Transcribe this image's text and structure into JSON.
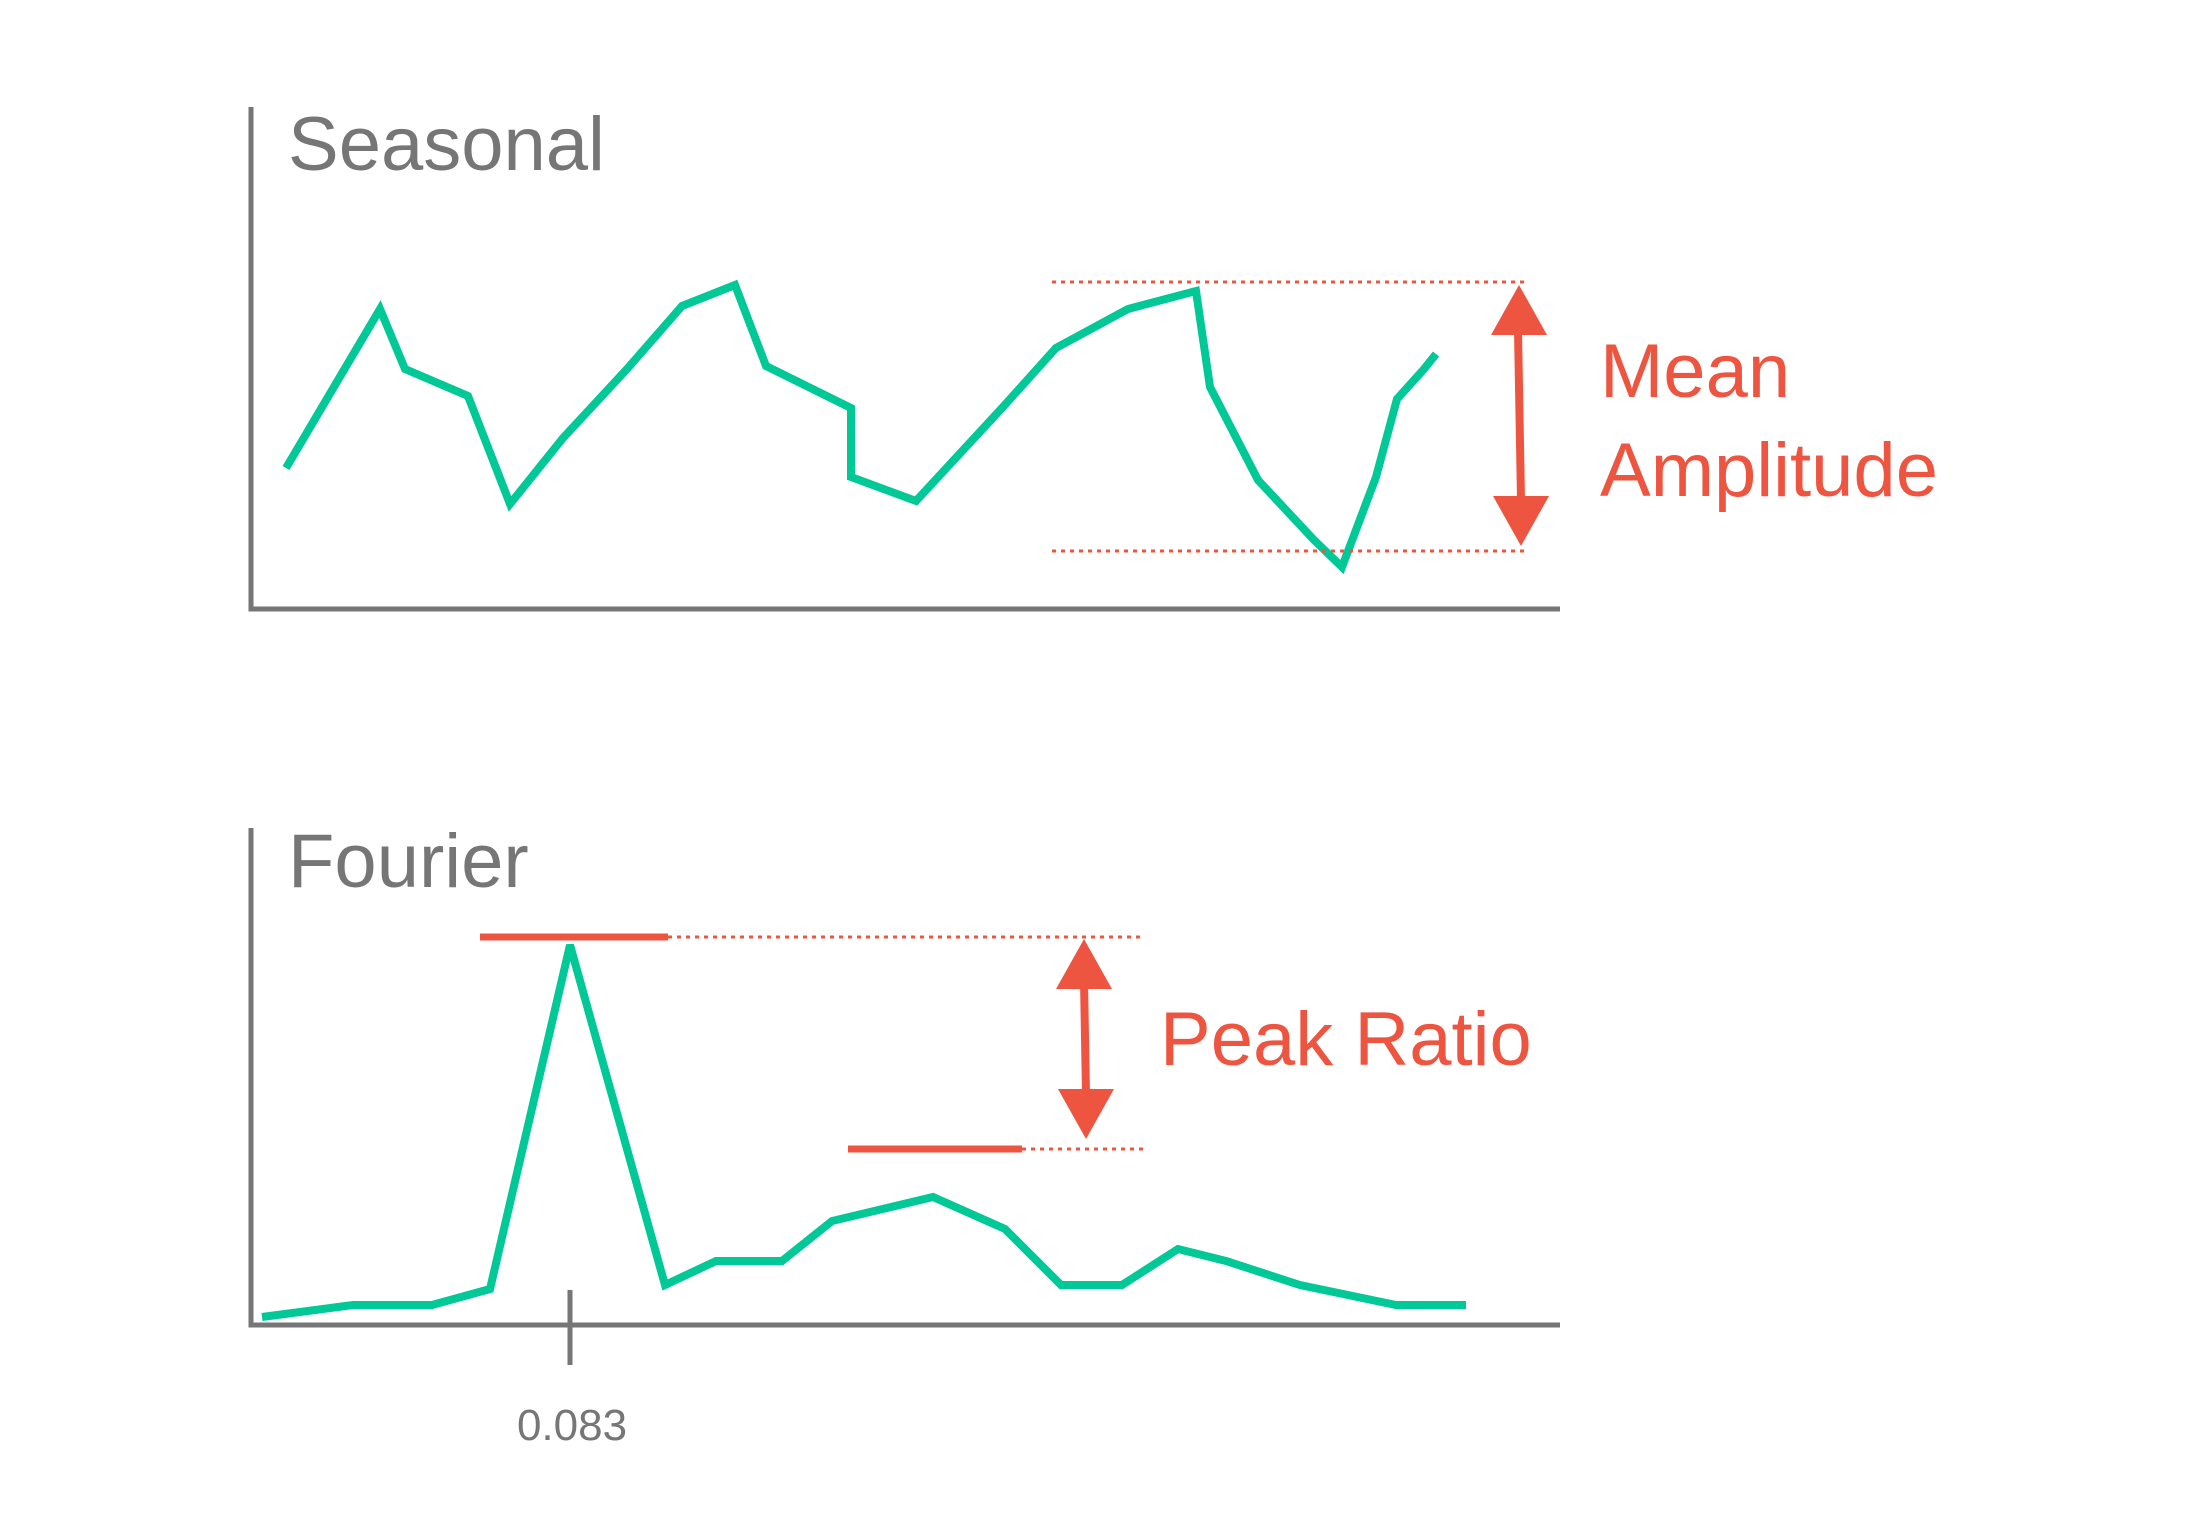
{
  "colors": {
    "axis": "#767676",
    "curve": "#00c896",
    "annotation": "#ee5540"
  },
  "seasonal": {
    "title": "Seasonal",
    "annotation_line1": "Mean",
    "annotation_line2": "Amplitude"
  },
  "fourier": {
    "title": "Fourier",
    "annotation": "Peak Ratio",
    "tick_label": "0.083"
  },
  "chart_data": [
    {
      "type": "line",
      "title": "Seasonal",
      "series": [
        {
          "values": [
            47,
            100,
            80,
            71,
            35,
            57,
            80,
            101,
            108,
            81,
            67,
            44,
            36,
            67,
            87,
            100,
            106,
            74,
            43,
            23,
            14,
            44,
            70,
            80,
            85
          ]
        }
      ],
      "ylim": [
        0,
        130
      ],
      "annotation": {
        "label": "Mean Amplitude",
        "high": 106,
        "low": 14
      }
    },
    {
      "type": "line",
      "title": "Fourier",
      "x_tick": "0.083",
      "series": [
        {
          "values": [
            2,
            5,
            5,
            9,
            95,
            10,
            16,
            16,
            26,
            32,
            24,
            10,
            10,
            19,
            16,
            10,
            5,
            5
          ]
        }
      ],
      "ylim": [
        0,
        115
      ],
      "annotation": {
        "label": "Peak Ratio",
        "high": 95,
        "low": 36
      }
    }
  ]
}
